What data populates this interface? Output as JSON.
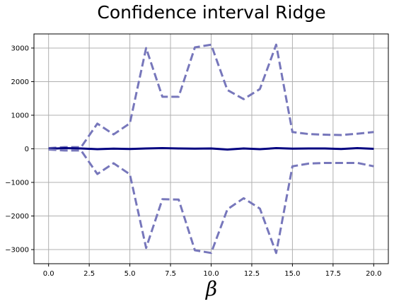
{
  "chart_data": {
    "type": "line",
    "title": "Confidence interval Ridge",
    "xlabel": "β",
    "ylabel": "",
    "xlim": [
      -0.9,
      20.9
    ],
    "ylim": [
      -3420,
      3420
    ],
    "xticks": [
      0.0,
      2.5,
      5.0,
      7.5,
      10.0,
      12.5,
      15.0,
      17.5,
      20.0
    ],
    "xtick_labels": [
      "0.0",
      "2.5",
      "5.0",
      "7.5",
      "10.0",
      "12.5",
      "15.0",
      "17.5",
      "20.0"
    ],
    "yticks": [
      -3000,
      -2000,
      -1000,
      0,
      1000,
      2000,
      3000
    ],
    "ytick_labels": [
      "−3000",
      "−2000",
      "−1000",
      "0",
      "1000",
      "2000",
      "3000"
    ],
    "grid": true,
    "x": [
      0,
      1,
      2,
      3,
      4,
      5,
      6,
      7,
      8,
      9,
      10,
      11,
      12,
      13,
      14,
      15,
      16,
      17,
      18,
      19,
      20
    ],
    "series": [
      {
        "style": "dashed",
        "color": "#7777bb",
        "values": [
          20,
          50,
          50,
          750,
          430,
          760,
          3000,
          1550,
          1550,
          3020,
          3100,
          1750,
          1480,
          1780,
          3100,
          500,
          440,
          420,
          410,
          450,
          500
        ]
      },
      {
        "style": "solid",
        "color": "#000080",
        "values": [
          0,
          20,
          10,
          -10,
          5,
          -5,
          10,
          20,
          10,
          5,
          10,
          -20,
          10,
          -10,
          20,
          5,
          10,
          10,
          -5,
          20,
          0
        ]
      },
      {
        "style": "dashed",
        "color": "#7777bb",
        "values": [
          -20,
          -50,
          -50,
          -750,
          -430,
          -760,
          -2950,
          -1500,
          -1510,
          -3020,
          -3100,
          -1800,
          -1470,
          -1780,
          -3100,
          -520,
          -440,
          -420,
          -420,
          -420,
          -520
        ]
      }
    ]
  }
}
